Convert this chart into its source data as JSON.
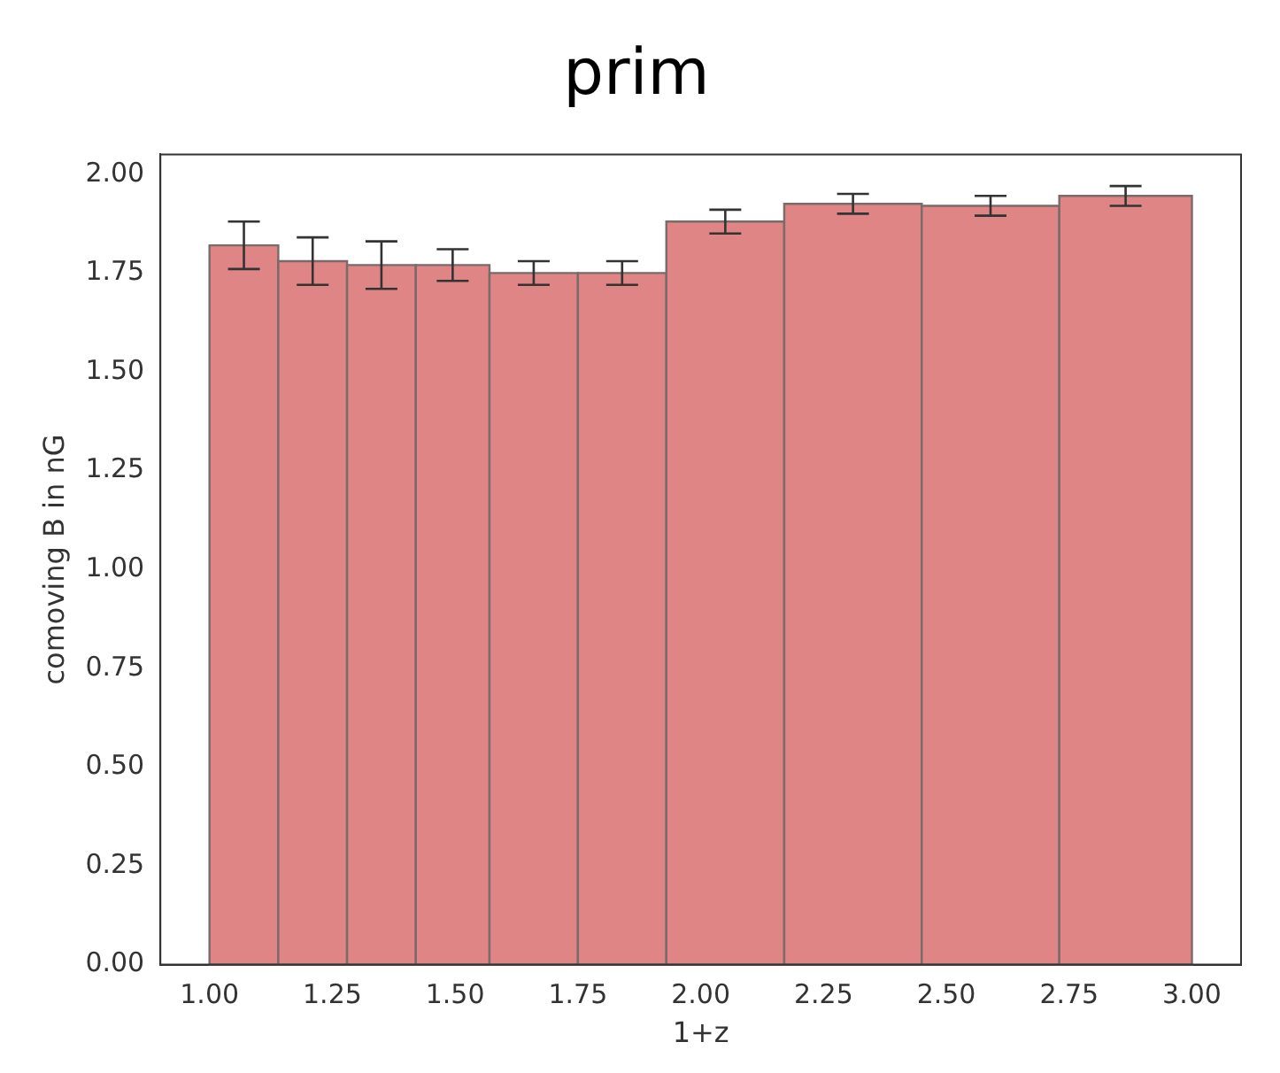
{
  "chart_data": {
    "type": "histogram",
    "title": "prim",
    "xlabel": "1+z",
    "ylabel": "comoving B in nG",
    "bins": [
      1.0,
      1.14,
      1.28,
      1.42,
      1.57,
      1.75,
      1.93,
      2.17,
      2.45,
      2.73,
      3.0
    ],
    "values": [
      1.82,
      1.78,
      1.77,
      1.77,
      1.75,
      1.75,
      1.88,
      1.925,
      1.92,
      1.945
    ],
    "errors": [
      0.06,
      0.06,
      0.06,
      0.04,
      0.03,
      0.03,
      0.03,
      0.025,
      0.025,
      0.025
    ],
    "color": "#e08585",
    "xlim": [
      0.9,
      3.1
    ],
    "xticks": [
      {
        "value": 1.0,
        "label": "1.00"
      },
      {
        "value": 1.25,
        "label": "1.25"
      },
      {
        "value": 1.5,
        "label": "1.50"
      },
      {
        "value": 1.75,
        "label": "1.75"
      },
      {
        "value": 2.0,
        "label": "2.00"
      },
      {
        "value": 2.25,
        "label": "2.25"
      },
      {
        "value": 2.5,
        "label": "2.50"
      },
      {
        "value": 2.75,
        "label": "2.75"
      },
      {
        "value": 3.0,
        "label": "3.00"
      }
    ],
    "ylim": [
      0,
      2.05
    ],
    "yticks": [
      {
        "value": 0,
        "label": "0.00"
      },
      {
        "value": 0.25,
        "label": "0.25"
      },
      {
        "value": 0.5,
        "label": "0.50"
      },
      {
        "value": 0.75,
        "label": "0.75"
      },
      {
        "value": 1.0,
        "label": "1.00"
      },
      {
        "value": 1.25,
        "label": "1.25"
      },
      {
        "value": 1.5,
        "label": "1.50"
      },
      {
        "value": 1.75,
        "label": "1.75"
      },
      {
        "value": 2.0,
        "label": "2.00"
      }
    ],
    "grid": false,
    "legend": false
  }
}
